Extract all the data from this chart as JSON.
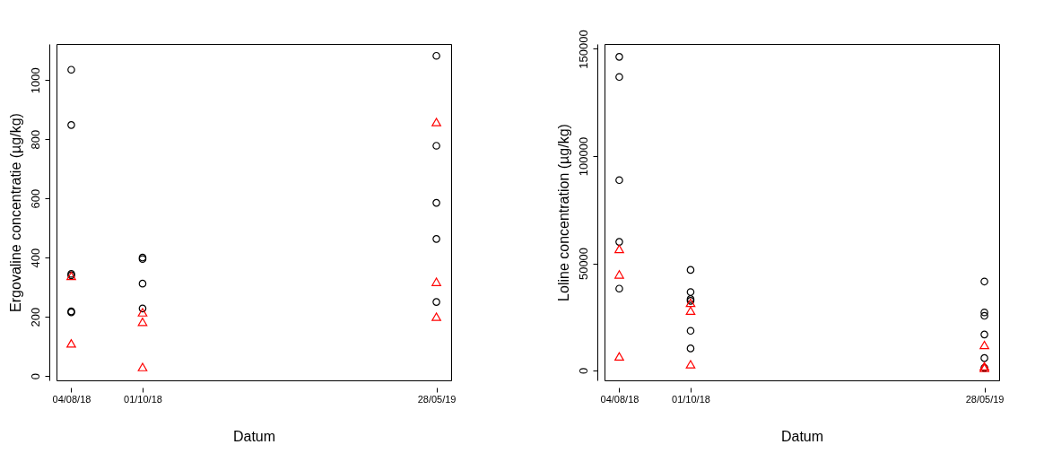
{
  "chart_data": [
    {
      "type": "scatter",
      "xlabel": "Datum",
      "ylabel": "Ergovaline concentratie (µg/kg)",
      "xlim": [
        "2018-07-23",
        "2019-06-09"
      ],
      "xticks": [
        {
          "value": "2018-08-04",
          "label": "04/08/18"
        },
        {
          "value": "2018-10-01",
          "label": "01/10/18"
        },
        {
          "value": "2019-05-28",
          "label": "28/05/19"
        }
      ],
      "ylim": [
        -15,
        1122
      ],
      "yticks": [
        0,
        200,
        400,
        600,
        800,
        1000
      ],
      "grid": false,
      "series": [
        {
          "color": "#000000",
          "marker": "circle",
          "x": [
            "2018-08-04",
            "2018-08-04",
            "2018-08-04",
            "2018-08-04",
            "2018-08-04",
            "2018-08-04",
            "2018-10-01",
            "2018-10-01",
            "2018-10-01",
            "2018-10-01",
            "2019-05-28",
            "2019-05-28",
            "2019-05-28",
            "2019-05-28",
            "2019-05-28"
          ],
          "values": [
            1035,
            848,
            345,
            340,
            218,
            215,
            400,
            395,
            312,
            228,
            1082,
            778,
            585,
            463,
            250
          ]
        },
        {
          "color": "#ff0000",
          "marker": "triangle",
          "x": [
            "2018-08-04",
            "2018-08-04",
            "2018-10-01",
            "2018-10-01",
            "2018-10-01",
            "2019-05-28",
            "2019-05-28",
            "2019-05-28"
          ],
          "values": [
            338,
            110,
            215,
            183,
            30,
            858,
            318,
            200
          ]
        }
      ]
    },
    {
      "type": "scatter",
      "xlabel": "Datum",
      "ylabel": "Loline concentration (µg/kg)",
      "xlim": [
        "2018-07-23",
        "2019-06-09"
      ],
      "xticks": [
        {
          "value": "2018-08-04",
          "label": "04/08/18"
        },
        {
          "value": "2018-10-01",
          "label": "01/10/18"
        },
        {
          "value": "2019-05-28",
          "label": "28/05/19"
        }
      ],
      "ylim": [
        -4600,
        152300
      ],
      "yticks": [
        0,
        50000,
        100000,
        150000
      ],
      "grid": false,
      "series": [
        {
          "color": "#000000",
          "marker": "circle",
          "x": [
            "2018-08-04",
            "2018-08-04",
            "2018-08-04",
            "2018-08-04",
            "2018-08-04",
            "2018-10-01",
            "2018-10-01",
            "2018-10-01",
            "2018-10-01",
            "2018-10-01",
            "2018-10-01",
            "2019-05-28",
            "2019-05-28",
            "2019-05-28",
            "2019-05-28",
            "2019-05-28",
            "2019-05-28"
          ],
          "values": [
            146300,
            136900,
            88800,
            60000,
            38200,
            46900,
            36600,
            33300,
            32500,
            18500,
            10300,
            41500,
            27100,
            25500,
            16800,
            5800,
            1200
          ]
        },
        {
          "color": "#ff0000",
          "marker": "triangle",
          "x": [
            "2018-08-04",
            "2018-08-04",
            "2018-08-04",
            "2018-10-01",
            "2018-10-01",
            "2018-10-01",
            "2019-05-28",
            "2019-05-28",
            "2019-05-28"
          ],
          "values": [
            56700,
            44800,
            6600,
            31600,
            27900,
            2900,
            11900,
            2000,
            1200
          ]
        }
      ]
    }
  ]
}
